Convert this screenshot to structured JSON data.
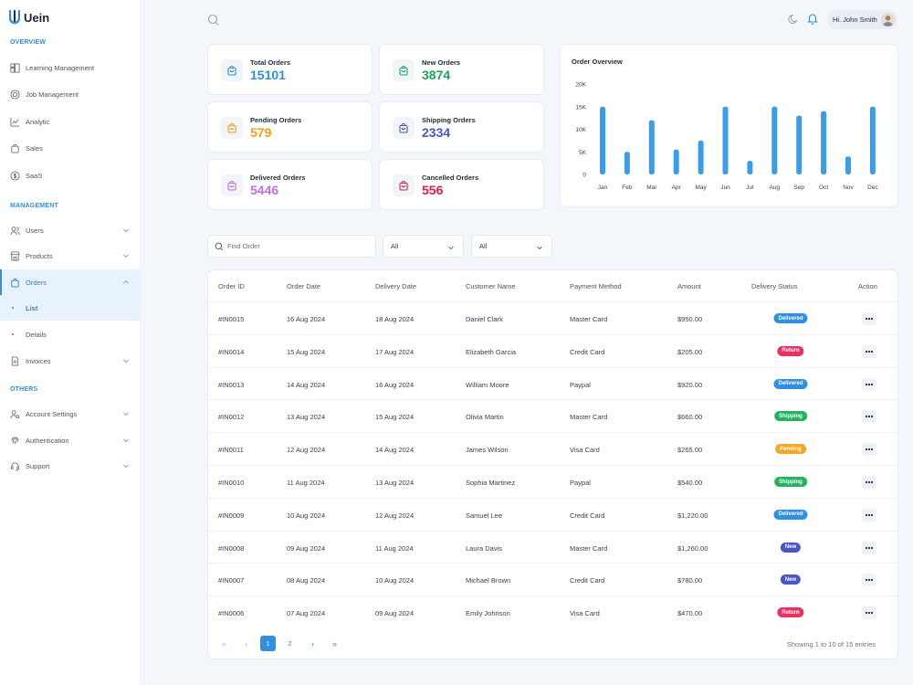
{
  "brand": {
    "name": "Uein"
  },
  "sidebar": {
    "sections": [
      "OVERVIEW",
      "MANAGEMENT",
      "OTHERS"
    ],
    "overview": [
      "Learning Management",
      "Job Management",
      "Analytic",
      "Sales",
      "SaaS"
    ],
    "management": [
      "Users",
      "Products",
      "Orders",
      "Invoices"
    ],
    "orders_sub": [
      "List",
      "Details"
    ],
    "others": [
      "Account Settings",
      "Authentication",
      "Support"
    ]
  },
  "header": {
    "greeting": "Hi. John Smith"
  },
  "stats": [
    {
      "label": "Total Orders",
      "value": "15101",
      "color": "#2f8fe0"
    },
    {
      "label": "New Orders",
      "value": "3874",
      "color": "#1aa461"
    },
    {
      "label": "Pending Orders",
      "value": "579",
      "color": "#f59e0b"
    },
    {
      "label": "Shipping Orders",
      "value": "2334",
      "color": "#4a55c8"
    },
    {
      "label": "Delivered Orders",
      "value": "5446",
      "color": "#c16ee8"
    },
    {
      "label": "Cancelled Orders",
      "value": "556",
      "color": "#e11d48"
    }
  ],
  "chart_data": {
    "type": "bar",
    "title": "Order Overview",
    "categories": [
      "Jan",
      "Feb",
      "Mar",
      "Apr",
      "May",
      "Jun",
      "Jul",
      "Aug",
      "Sep",
      "Oct",
      "Nov",
      "Dec"
    ],
    "values": [
      15000,
      5000,
      12000,
      5500,
      7500,
      15000,
      3000,
      15000,
      13000,
      14000,
      4000,
      15000
    ],
    "yticks": [
      "20K",
      "15K",
      "10K",
      "5K",
      "0"
    ],
    "ylim": [
      0,
      20000
    ],
    "color": "#3b9cea"
  },
  "filters": {
    "search_placeholder": "Find Order",
    "select1": "All",
    "select2": "All"
  },
  "table": {
    "columns": [
      "Order ID",
      "Order Date",
      "Delivery Date",
      "Customer Name",
      "Payment Method",
      "Amount",
      "Delivery Status",
      "Action"
    ],
    "rows": [
      {
        "id": "#IN0015",
        "order_date": "16 Aug 2024",
        "delivery_date": "18 Aug 2024",
        "customer": "Daniel Clark",
        "payment": "Master Card",
        "amount": "$950.00",
        "status": "Delivered"
      },
      {
        "id": "#IN0014",
        "order_date": "15 Aug 2024",
        "delivery_date": "17 Aug 2024",
        "customer": "Elizabeth Garcia",
        "payment": "Credit Card",
        "amount": "$205.00",
        "status": "Return"
      },
      {
        "id": "#IN0013",
        "order_date": "14 Aug 2024",
        "delivery_date": "16 Aug 2024",
        "customer": "William Moore",
        "payment": "Paypal",
        "amount": "$920.00",
        "status": "Delivered"
      },
      {
        "id": "#IN0012",
        "order_date": "13 Aug 2024",
        "delivery_date": "15 Aug 2024",
        "customer": "Olivia Martin",
        "payment": "Master Card",
        "amount": "$660.00",
        "status": "Shipping"
      },
      {
        "id": "#IN0011",
        "order_date": "12 Aug 2024",
        "delivery_date": "14 Aug 2024",
        "customer": "James Wilson",
        "payment": "Visa Card",
        "amount": "$265.00",
        "status": "Pending"
      },
      {
        "id": "#IN0010",
        "order_date": "11 Aug 2024",
        "delivery_date": "13 Aug 2024",
        "customer": "Sophia Martinez",
        "payment": "Paypal",
        "amount": "$540.00",
        "status": "Shipping"
      },
      {
        "id": "#IN0009",
        "order_date": "10 Aug 2024",
        "delivery_date": "12 Aug 2024",
        "customer": "Samuel Lee",
        "payment": "Credit Card",
        "amount": "$1,220.00",
        "status": "Delivered"
      },
      {
        "id": "#IN0008",
        "order_date": "09 Aug 2024",
        "delivery_date": "11 Aug 2024",
        "customer": "Laura Davis",
        "payment": "Master Card",
        "amount": "$1,260.00",
        "status": "New"
      },
      {
        "id": "#IN0007",
        "order_date": "08 Aug 2024",
        "delivery_date": "10 Aug 2024",
        "customer": "Michael Brown",
        "payment": "Credit Card",
        "amount": "$780.00",
        "status": "New"
      },
      {
        "id": "#IN0006",
        "order_date": "07 Aug 2024",
        "delivery_date": "09 Aug 2024",
        "customer": "Emily Johnson",
        "payment": "Visa Card",
        "amount": "$470.00",
        "status": "Return"
      }
    ],
    "status_colors": {
      "Delivered": "#2f8fe0",
      "Return": "#ec2f62",
      "Shipping": "#22b35e",
      "Pending": "#f5a623",
      "New": "#4a55c8"
    }
  },
  "pagination": {
    "first": "«",
    "prev": "‹",
    "next": "›",
    "last": "»",
    "pages": [
      "1",
      "2"
    ],
    "summary": "Showing 1 to 10 of 15 entries"
  }
}
